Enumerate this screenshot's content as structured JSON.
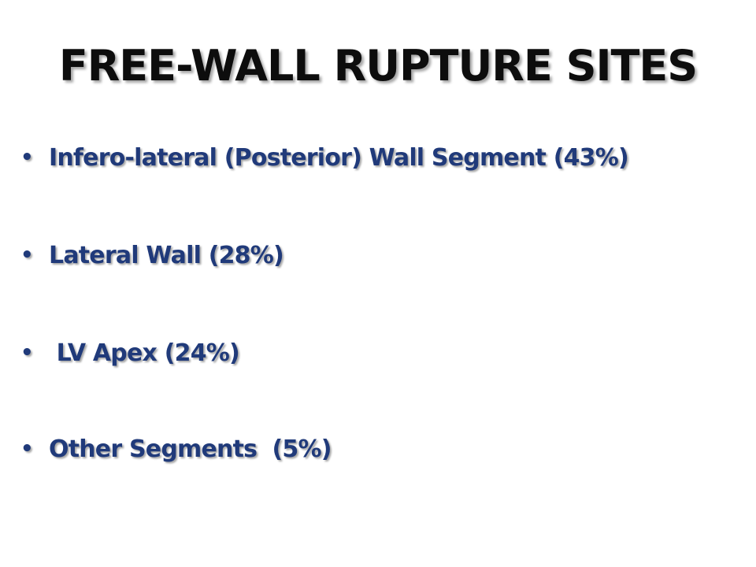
{
  "slide": {
    "title": "FREE-WALL RUPTURE SITES",
    "bullet_glyph": "•",
    "bullets": [
      {
        "text": "Infero-lateral (Posterior) Wall Segment (43%)"
      },
      {
        "text": "Lateral Wall (28%)"
      },
      {
        "text": " LV Apex (24%)"
      },
      {
        "text": "Other Segments  (5%)"
      }
    ]
  },
  "colors": {
    "title": "#0d0d0d",
    "bullet_text": "#203a7a",
    "background": "#ffffff"
  }
}
